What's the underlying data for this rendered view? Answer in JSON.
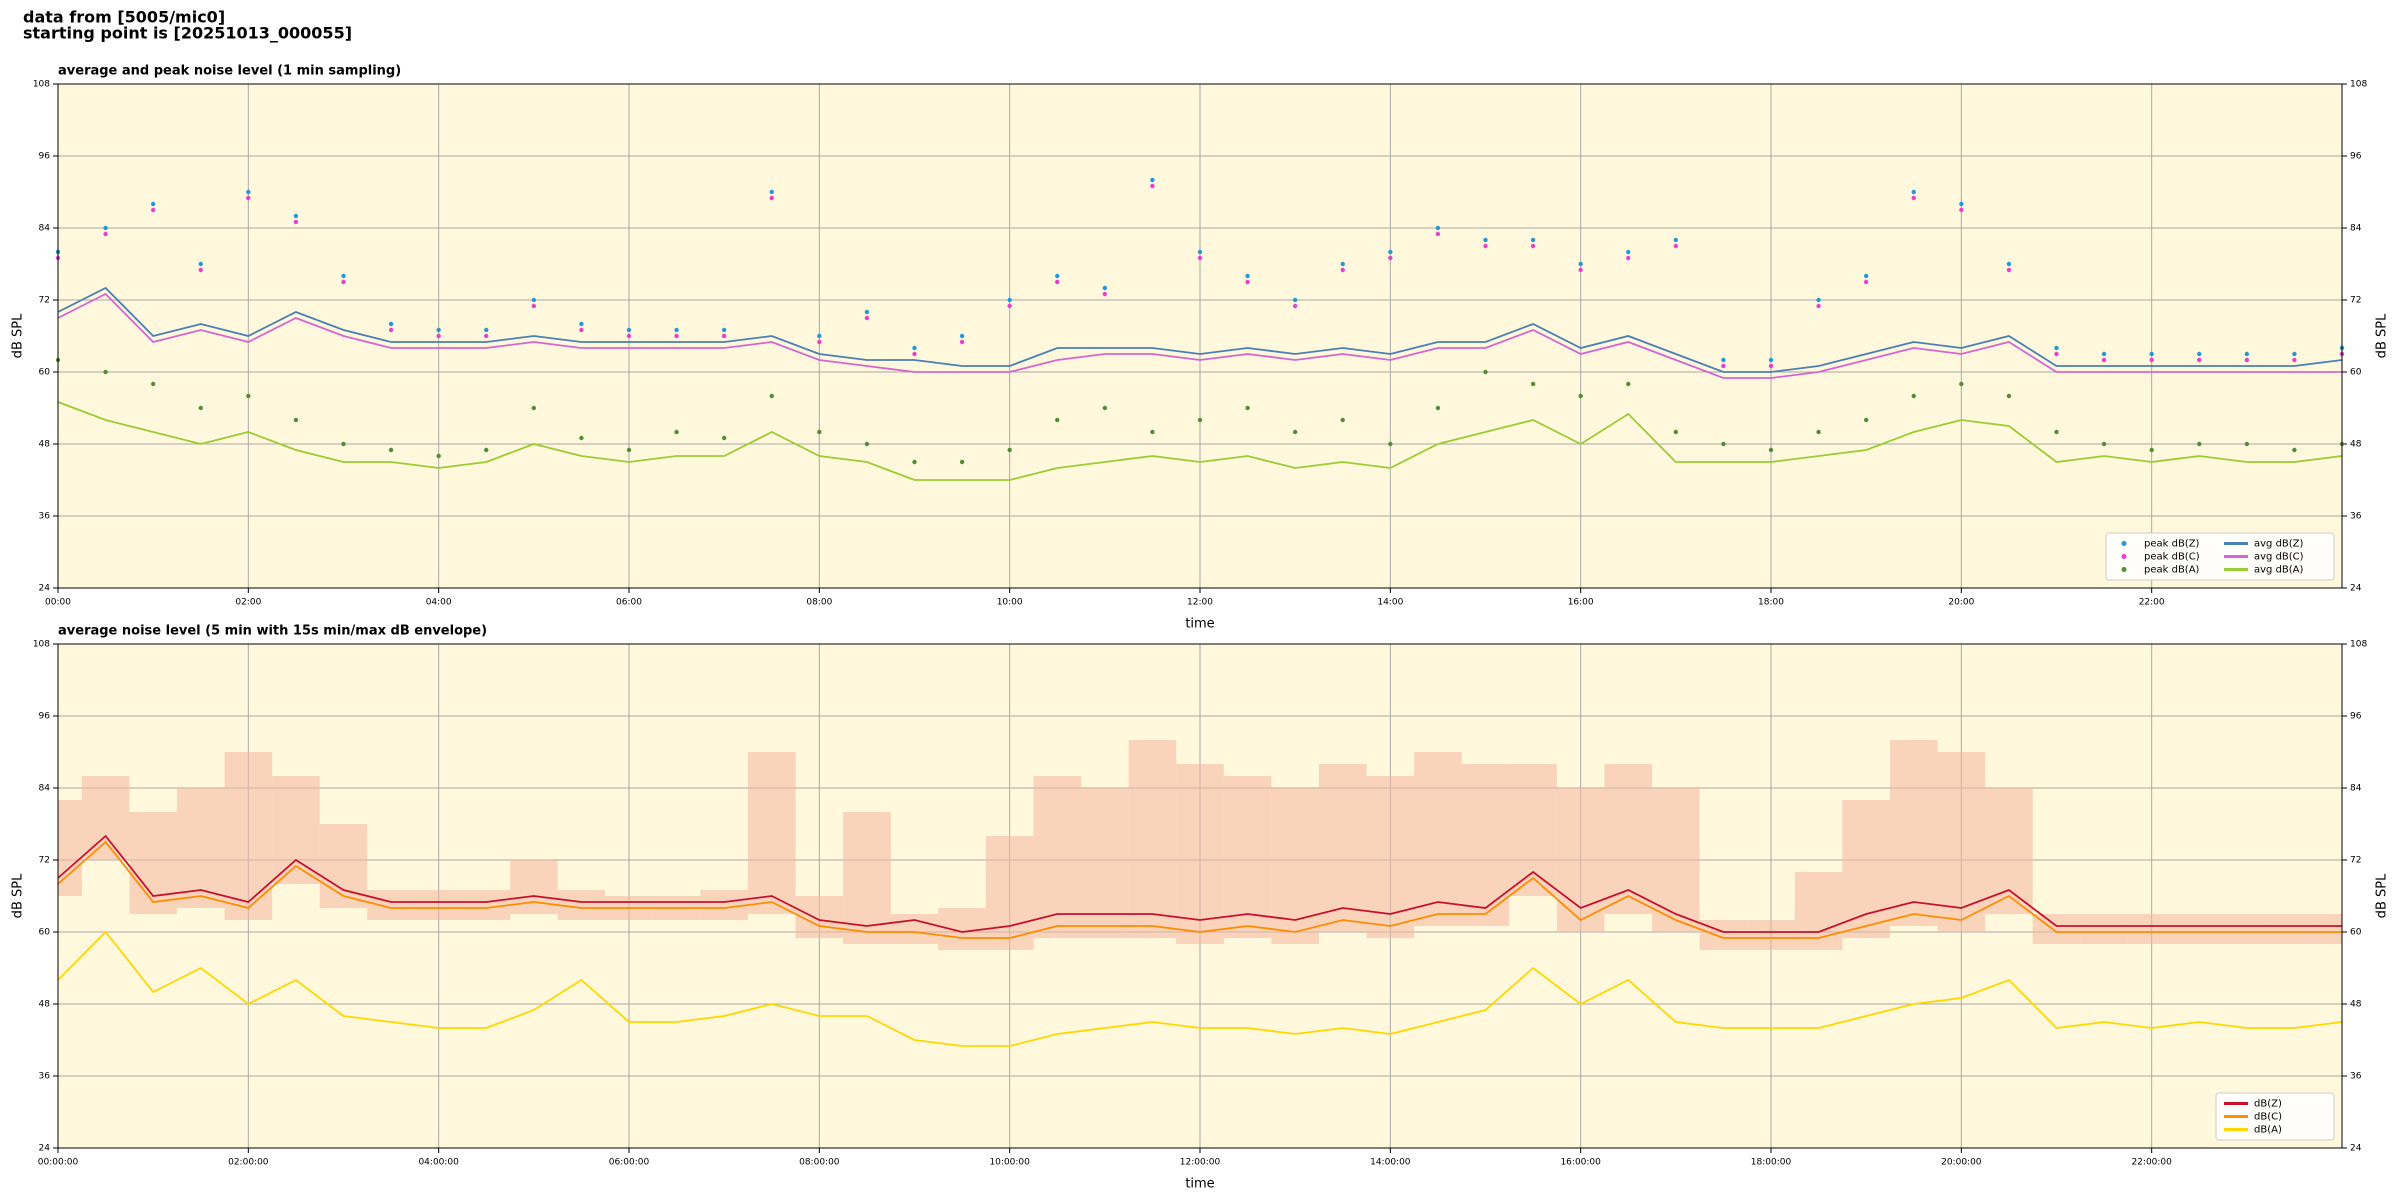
{
  "header": {
    "line1": "data from [5005/mic0]",
    "line2": "starting point is [20251013_000055]"
  },
  "chart_data": [
    {
      "type": "line",
      "title": "average and peak noise level (1 min sampling)",
      "xlabel": "time",
      "ylabel": "dB SPL",
      "background": "#fff8dc",
      "grid": true,
      "legend": "lower right",
      "xlim": [
        0,
        1440
      ],
      "ylim": [
        24,
        108
      ],
      "yticks": [
        24,
        36,
        48,
        60,
        72,
        84,
        96,
        108
      ],
      "xticks": [
        {
          "value": 0,
          "label": "00:00"
        },
        {
          "value": 120,
          "label": "02:00"
        },
        {
          "value": 240,
          "label": "04:00"
        },
        {
          "value": 360,
          "label": "06:00"
        },
        {
          "value": 480,
          "label": "08:00"
        },
        {
          "value": 600,
          "label": "10:00"
        },
        {
          "value": 720,
          "label": "12:00"
        },
        {
          "value": 840,
          "label": "14:00"
        },
        {
          "value": 960,
          "label": "16:00"
        },
        {
          "value": 1080,
          "label": "18:00"
        },
        {
          "value": 1200,
          "label": "20:00"
        },
        {
          "value": 1320,
          "label": "22:00"
        }
      ],
      "x": [
        0,
        30,
        60,
        90,
        120,
        150,
        180,
        210,
        240,
        270,
        300,
        330,
        360,
        390,
        420,
        450,
        480,
        510,
        540,
        570,
        600,
        630,
        660,
        690,
        720,
        750,
        780,
        810,
        840,
        870,
        900,
        930,
        960,
        990,
        1020,
        1050,
        1080,
        1110,
        1140,
        1170,
        1200,
        1230,
        1260,
        1290,
        1320,
        1350,
        1380,
        1410,
        1440
      ],
      "series": [
        {
          "name": "peak dB(Z)",
          "marker": "dot",
          "color": "#1f9ad6",
          "values": [
            80,
            84,
            88,
            78,
            90,
            86,
            76,
            68,
            67,
            67,
            72,
            68,
            67,
            67,
            67,
            90,
            66,
            70,
            64,
            66,
            72,
            76,
            74,
            92,
            80,
            76,
            72,
            78,
            80,
            84,
            82,
            82,
            78,
            80,
            82,
            62,
            62,
            72,
            76,
            90,
            88,
            78,
            64,
            63,
            63,
            63,
            63,
            63,
            64
          ]
        },
        {
          "name": "peak dB(C)",
          "marker": "dot",
          "color": "#e83fd0",
          "values": [
            79,
            83,
            87,
            77,
            89,
            85,
            75,
            67,
            66,
            66,
            71,
            67,
            66,
            66,
            66,
            89,
            65,
            69,
            63,
            65,
            71,
            75,
            73,
            91,
            79,
            75,
            71,
            77,
            79,
            83,
            81,
            81,
            77,
            79,
            81,
            61,
            61,
            71,
            75,
            89,
            87,
            77,
            63,
            62,
            62,
            62,
            62,
            62,
            63
          ]
        },
        {
          "name": "peak dB(A)",
          "marker": "dot",
          "color": "#4f8f33",
          "values": [
            62,
            60,
            58,
            54,
            56,
            52,
            48,
            47,
            46,
            47,
            54,
            49,
            47,
            50,
            49,
            56,
            50,
            48,
            45,
            45,
            47,
            52,
            54,
            50,
            52,
            54,
            50,
            52,
            48,
            54,
            60,
            58,
            56,
            58,
            50,
            48,
            47,
            50,
            52,
            56,
            58,
            56,
            50,
            48,
            47,
            48,
            48,
            47,
            48
          ]
        },
        {
          "name": "avg dB(Z)",
          "color": "#4a7fb5",
          "values": [
            70,
            74,
            66,
            68,
            66,
            70,
            67,
            65,
            65,
            65,
            66,
            65,
            65,
            65,
            65,
            66,
            63,
            62,
            62,
            61,
            61,
            64,
            64,
            64,
            63,
            64,
            63,
            64,
            63,
            65,
            65,
            68,
            64,
            66,
            63,
            60,
            60,
            61,
            63,
            65,
            64,
            66,
            61,
            61,
            61,
            61,
            61,
            61,
            62
          ]
        },
        {
          "name": "avg dB(C)",
          "color": "#d466d4",
          "values": [
            69,
            73,
            65,
            67,
            65,
            69,
            66,
            64,
            64,
            64,
            65,
            64,
            64,
            64,
            64,
            65,
            62,
            61,
            60,
            60,
            60,
            62,
            63,
            63,
            62,
            63,
            62,
            63,
            62,
            64,
            64,
            67,
            63,
            65,
            62,
            59,
            59,
            60,
            62,
            64,
            63,
            65,
            60,
            60,
            60,
            60,
            60,
            60,
            60
          ]
        },
        {
          "name": "avg dB(A)",
          "color": "#9acd32",
          "values": [
            55,
            52,
            50,
            48,
            50,
            47,
            45,
            45,
            44,
            45,
            48,
            46,
            45,
            46,
            46,
            50,
            46,
            45,
            42,
            42,
            42,
            44,
            45,
            46,
            45,
            46,
            44,
            45,
            44,
            48,
            50,
            52,
            48,
            53,
            45,
            45,
            45,
            46,
            47,
            50,
            52,
            51,
            45,
            46,
            45,
            46,
            45,
            45,
            46
          ]
        }
      ]
    },
    {
      "type": "line",
      "title": "average noise level (5 min with 15s min/max dB envelope)",
      "xlabel": "time",
      "ylabel": "dB SPL",
      "background": "#fff8dc",
      "grid": true,
      "legend": "lower right",
      "xlim": [
        0,
        1440
      ],
      "ylim": [
        24,
        108
      ],
      "yticks": [
        24,
        36,
        48,
        60,
        72,
        84,
        96,
        108
      ],
      "xticks": [
        {
          "value": 0,
          "label": "00:00:00"
        },
        {
          "value": 120,
          "label": "02:00:00"
        },
        {
          "value": 240,
          "label": "04:00:00"
        },
        {
          "value": 360,
          "label": "06:00:00"
        },
        {
          "value": 480,
          "label": "08:00:00"
        },
        {
          "value": 600,
          "label": "10:00:00"
        },
        {
          "value": 720,
          "label": "12:00:00"
        },
        {
          "value": 840,
          "label": "14:00:00"
        },
        {
          "value": 960,
          "label": "16:00:00"
        },
        {
          "value": 1080,
          "label": "18:00:00"
        },
        {
          "value": 1200,
          "label": "20:00:00"
        },
        {
          "value": 1320,
          "label": "22:00:00"
        }
      ],
      "x": [
        0,
        30,
        60,
        90,
        120,
        150,
        180,
        210,
        240,
        270,
        300,
        330,
        360,
        390,
        420,
        450,
        480,
        510,
        540,
        570,
        600,
        630,
        660,
        690,
        720,
        750,
        780,
        810,
        840,
        870,
        900,
        930,
        960,
        990,
        1020,
        1050,
        1080,
        1110,
        1140,
        1170,
        1200,
        1230,
        1260,
        1290,
        1320,
        1350,
        1380,
        1410,
        1440
      ],
      "envelope": {
        "color": "#f4b6a0",
        "low": [
          66,
          72,
          63,
          64,
          62,
          68,
          64,
          62,
          62,
          62,
          63,
          62,
          62,
          62,
          62,
          63,
          59,
          58,
          58,
          57,
          57,
          59,
          59,
          59,
          58,
          59,
          58,
          60,
          59,
          61,
          61,
          66,
          60,
          63,
          60,
          57,
          57,
          57,
          59,
          61,
          60,
          63,
          58,
          58,
          58,
          58,
          58,
          58,
          58
        ],
        "high": [
          82,
          86,
          80,
          84,
          90,
          86,
          78,
          67,
          67,
          67,
          72,
          67,
          66,
          66,
          67,
          90,
          66,
          80,
          63,
          64,
          76,
          86,
          84,
          92,
          88,
          86,
          84,
          88,
          86,
          90,
          88,
          88,
          84,
          88,
          84,
          62,
          62,
          70,
          82,
          92,
          90,
          84,
          63,
          63,
          63,
          63,
          63,
          63,
          63
        ]
      },
      "series": [
        {
          "name": "dB(Z)",
          "color": "#c8102e",
          "values": [
            69,
            76,
            66,
            67,
            65,
            72,
            67,
            65,
            65,
            65,
            66,
            65,
            65,
            65,
            65,
            66,
            62,
            61,
            62,
            60,
            61,
            63,
            63,
            63,
            62,
            63,
            62,
            64,
            63,
            65,
            64,
            70,
            64,
            67,
            63,
            60,
            60,
            60,
            63,
            65,
            64,
            67,
            61,
            61,
            61,
            61,
            61,
            61,
            61
          ]
        },
        {
          "name": "dB(C)",
          "color": "#ff8c00",
          "values": [
            68,
            75,
            65,
            66,
            64,
            71,
            66,
            64,
            64,
            64,
            65,
            64,
            64,
            64,
            64,
            65,
            61,
            60,
            60,
            59,
            59,
            61,
            61,
            61,
            60,
            61,
            60,
            62,
            61,
            63,
            63,
            69,
            62,
            66,
            62,
            59,
            59,
            59,
            61,
            63,
            62,
            66,
            60,
            60,
            60,
            60,
            60,
            60,
            60
          ]
        },
        {
          "name": "dB(A)",
          "color": "#ffd700",
          "values": [
            52,
            60,
            50,
            54,
            48,
            52,
            46,
            45,
            44,
            44,
            47,
            52,
            45,
            45,
            46,
            48,
            46,
            46,
            42,
            41,
            41,
            43,
            44,
            45,
            44,
            44,
            43,
            44,
            43,
            45,
            47,
            54,
            48,
            52,
            45,
            44,
            44,
            44,
            46,
            48,
            49,
            52,
            44,
            45,
            44,
            45,
            44,
            44,
            45
          ]
        }
      ]
    }
  ]
}
